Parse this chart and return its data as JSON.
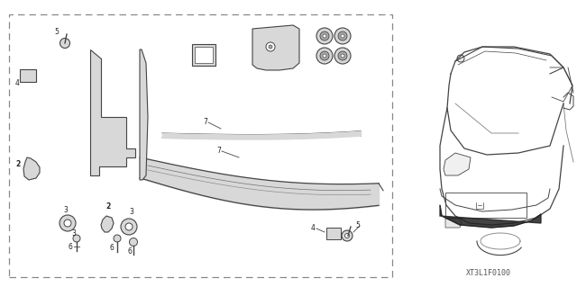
{
  "background_color": "#ffffff",
  "line_color": "#444444",
  "text_color": "#222222",
  "fig_width": 6.4,
  "fig_height": 3.19,
  "dpi": 100,
  "watermark": "XT3L1F0100"
}
